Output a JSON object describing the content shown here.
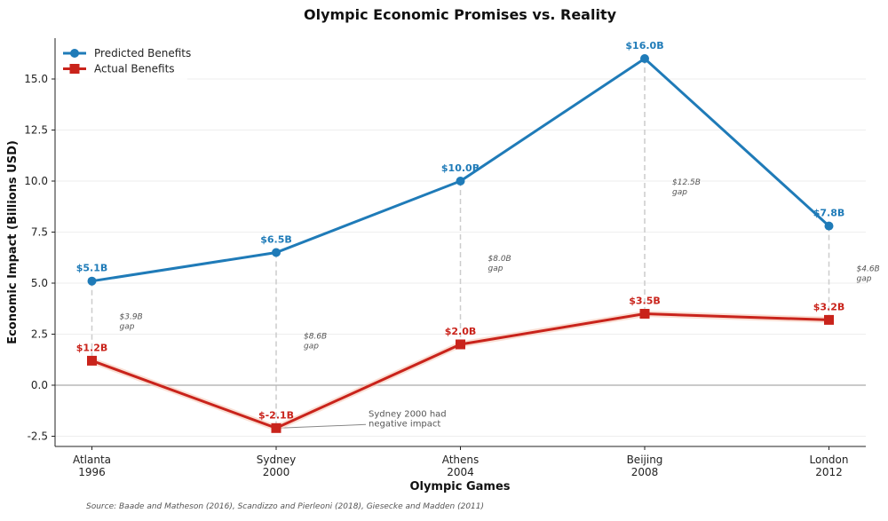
{
  "chart_data": {
    "type": "line",
    "title": "Olympic Economic Promises vs. Reality",
    "xlabel": "Olympic Games",
    "ylabel": "Economic Impact (Billions USD)",
    "categories": [
      "Atlanta\n1996",
      "Sydney\n2000",
      "Athens\n2004",
      "Beijing\n2008",
      "London\n2012"
    ],
    "ylim": [
      -3,
      17
    ],
    "yticks": [
      -2.5,
      0.0,
      2.5,
      5.0,
      7.5,
      10.0,
      12.5,
      15.0
    ],
    "grid": true,
    "legend": "top-left",
    "series": [
      {
        "name": "Predicted Benefits",
        "values": [
          5.1,
          6.5,
          10.0,
          16.0,
          7.8
        ],
        "labels": [
          "$5.1B",
          "$6.5B",
          "$10.0B",
          "$16.0B",
          "$7.8B"
        ],
        "color": "#1f7bb8",
        "marker": "circle"
      },
      {
        "name": "Actual Benefits",
        "values": [
          1.2,
          -2.1,
          2.0,
          3.5,
          3.2
        ],
        "labels": [
          "$1.2B",
          "$-2.1B",
          "$2.0B",
          "$3.5B",
          "$3.2B"
        ],
        "color": "#c9231b",
        "marker": "square"
      }
    ],
    "gap_labels": [
      "$3.9B\ngap",
      "$8.6B\ngap",
      "$8.0B\ngap",
      "$12.5B\ngap",
      "$4.6B\ngap"
    ],
    "annotation": {
      "text": "Sydney 2000 had\nnegative impact",
      "target_index": 1
    },
    "source": "Source: Baade and Matheson (2016), Scandizzo and Pierleoni (2018), Giesecke and Madden (2011)"
  }
}
